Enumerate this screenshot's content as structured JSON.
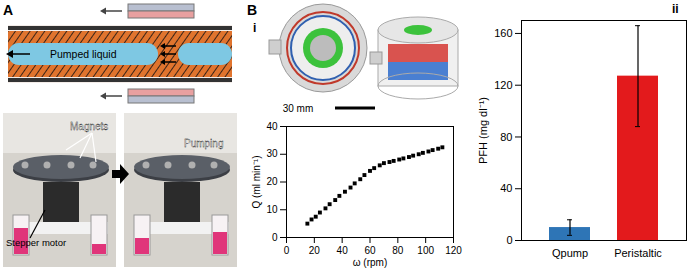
{
  "panels": {
    "A": {
      "label": "A",
      "liquid": "Pumped liquid",
      "magnets": "Magnets",
      "pumping": "Pumping",
      "motor": "Stepper motor"
    },
    "B": {
      "label": "B",
      "sub_i": "i",
      "sub_ii": "ii",
      "scale_bar": "30 mm"
    }
  },
  "chart_data": [
    {
      "type": "scatter",
      "x": [
        15,
        18,
        21,
        24,
        28,
        31,
        35,
        38,
        42,
        46,
        49,
        53,
        56,
        60,
        63,
        67,
        70,
        74,
        77,
        81,
        84,
        88,
        91,
        95,
        98,
        102,
        105,
        109,
        112
      ],
      "values": [
        5,
        6.5,
        7.5,
        9,
        10.5,
        12,
        13.5,
        15,
        16.5,
        18,
        19.5,
        21,
        22.5,
        24,
        25,
        26,
        26.8,
        27.2,
        27.6,
        28.1,
        28.5,
        29,
        29.5,
        30,
        30.5,
        31,
        31.5,
        32,
        32.5
      ],
      "x_label": "ω (rpm)",
      "y_label": "Q (ml min⁻¹)",
      "xlim": [
        0,
        120
      ],
      "ylim": [
        0,
        40
      ],
      "xticks": [
        0,
        20,
        40,
        60,
        80,
        100,
        120
      ],
      "yticks": [
        0,
        10,
        20,
        30,
        40
      ],
      "color": "#000000",
      "marker": "square",
      "grid": false
    },
    {
      "type": "bar",
      "categories": [
        "Qpump",
        "Peristaltic"
      ],
      "values": [
        10,
        127
      ],
      "errors": [
        6,
        39
      ],
      "colors": [
        "#2e75b6",
        "#e31a1c"
      ],
      "y_label": "PFH (mg dl⁻¹)",
      "ylim": [
        0,
        170
      ],
      "yticks": [
        0,
        40,
        80,
        120,
        160
      ],
      "grid": false
    }
  ]
}
